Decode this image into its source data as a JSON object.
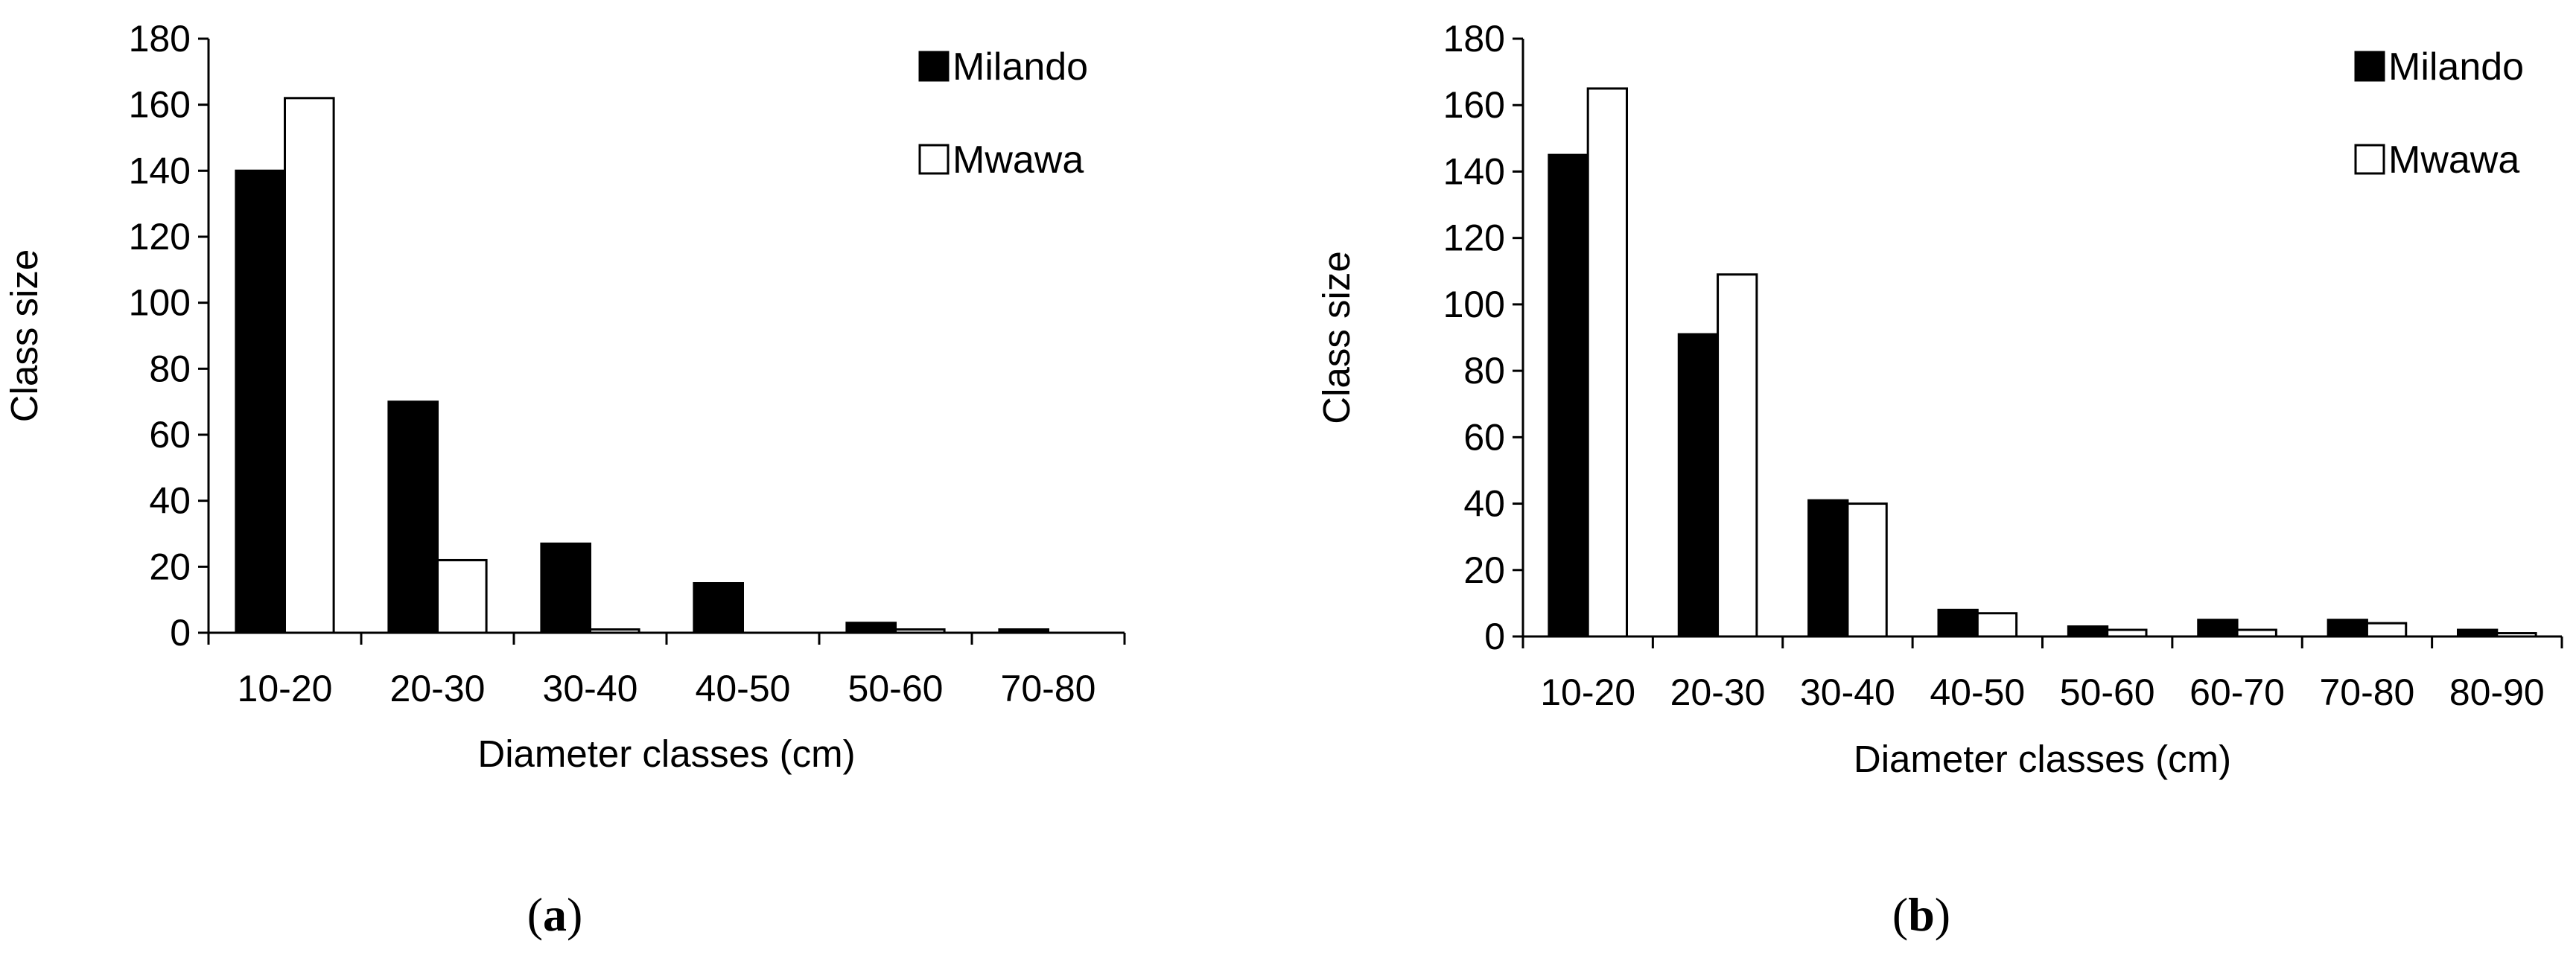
{
  "chart_data": [
    {
      "type": "bar",
      "panel": "a",
      "categories": [
        "10-20",
        "20-30",
        "30-40",
        "40-50",
        "50-60",
        "70-80"
      ],
      "series": [
        {
          "name": "Milando",
          "fill": "#000000",
          "values": [
            140,
            70,
            27,
            15,
            3,
            1
          ]
        },
        {
          "name": "Mwawa",
          "fill": "#ffffff",
          "values": [
            162,
            22,
            1,
            0,
            1,
            0
          ]
        }
      ],
      "xlabel": "Diameter classes (cm)",
      "ylabel": "Class size",
      "ylim": [
        0,
        180
      ],
      "yticks": [
        0,
        20,
        40,
        60,
        80,
        100,
        120,
        140,
        160,
        180
      ],
      "legend_position": "top-right",
      "caption": {
        "open": "(",
        "letter": "a",
        "close": ")"
      }
    },
    {
      "type": "bar",
      "panel": "b",
      "categories": [
        "10-20",
        "20-30",
        "30-40",
        "40-50",
        "50-60",
        "60-70",
        "70-80",
        "80-90"
      ],
      "series": [
        {
          "name": "Milando",
          "fill": "#000000",
          "values": [
            145,
            91,
            41,
            8,
            3,
            5,
            5,
            2
          ]
        },
        {
          "name": "Mwawa",
          "fill": "#ffffff",
          "values": [
            165,
            109,
            40,
            7,
            2,
            2,
            4,
            1
          ]
        }
      ],
      "xlabel": "Diameter classes (cm)",
      "ylabel": "Class size",
      "ylim": [
        0,
        180
      ],
      "yticks": [
        0,
        20,
        40,
        60,
        80,
        100,
        120,
        140,
        160,
        180
      ],
      "legend_position": "top-right",
      "caption": {
        "open": "(",
        "letter": "b",
        "close": ")"
      }
    }
  ]
}
